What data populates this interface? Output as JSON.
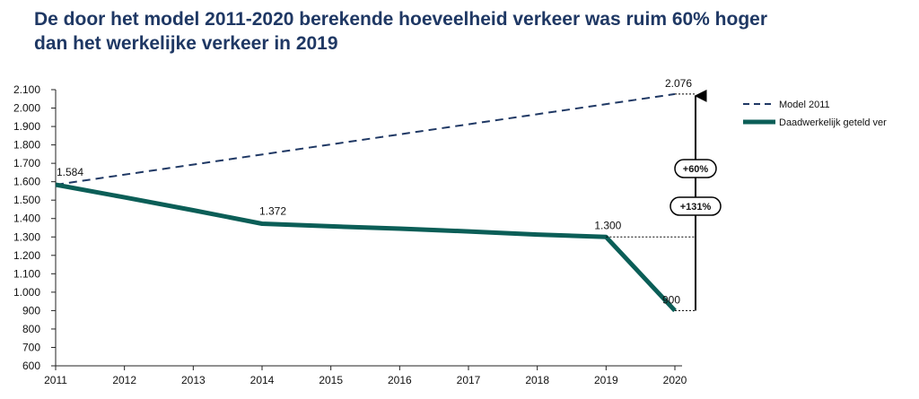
{
  "title_line1": "De door het model 2011-2020 berekende hoeveelheid verkeer was ruim 60% hoger",
  "title_line2": "dan het werkelijke verkeer in 2019",
  "chart_data": {
    "type": "line",
    "x": [
      2011,
      2012,
      2013,
      2014,
      2015,
      2016,
      2017,
      2018,
      2019,
      2020
    ],
    "ylim": [
      600,
      2100
    ],
    "yticks": [
      600,
      700,
      800,
      900,
      1000,
      1100,
      1200,
      1300,
      1400,
      1500,
      1600,
      1700,
      1800,
      1900,
      2000,
      2100
    ],
    "ytick_labels": [
      "600",
      "700",
      "800",
      "900",
      "1.000",
      "1.100",
      "1.200",
      "1.300",
      "1.400",
      "1.500",
      "1.600",
      "1.700",
      "1.800",
      "1.900",
      "2.000",
      "2.100"
    ],
    "xtick_labels": [
      "2011",
      "2012",
      "2013",
      "2014",
      "2015",
      "2016",
      "2017",
      "2018",
      "2019",
      "2020"
    ],
    "series": [
      {
        "name": "Model 2011",
        "style": "dashed",
        "color": "#1f3864",
        "points": [
          [
            2011,
            1584
          ],
          [
            2020,
            2076
          ]
        ]
      },
      {
        "name": "Daadwerkelijk geteld ver",
        "style": "solid",
        "color": "#0b5e57",
        "points": [
          [
            2011,
            1584
          ],
          [
            2012,
            1515
          ],
          [
            2013,
            1445
          ],
          [
            2014,
            1372
          ],
          [
            2015,
            1358
          ],
          [
            2016,
            1345
          ],
          [
            2017,
            1330
          ],
          [
            2018,
            1313
          ],
          [
            2019,
            1300
          ],
          [
            2020,
            900
          ]
        ]
      }
    ],
    "data_labels": [
      {
        "x": 2011,
        "y": 1584,
        "text": "1.584"
      },
      {
        "x": 2014,
        "y": 1372,
        "text": "1.372"
      },
      {
        "x": 2019,
        "y": 1300,
        "text": "1.300"
      },
      {
        "x": 2020,
        "y": 900,
        "text": "900"
      },
      {
        "x": 2020,
        "y": 2076,
        "text": "2.076"
      }
    ],
    "annotations": [
      {
        "text": "+60%",
        "from": 1300,
        "to": 2076
      },
      {
        "text": "+131%",
        "from": 900,
        "to": 2076
      }
    ],
    "legend_position": "right"
  }
}
